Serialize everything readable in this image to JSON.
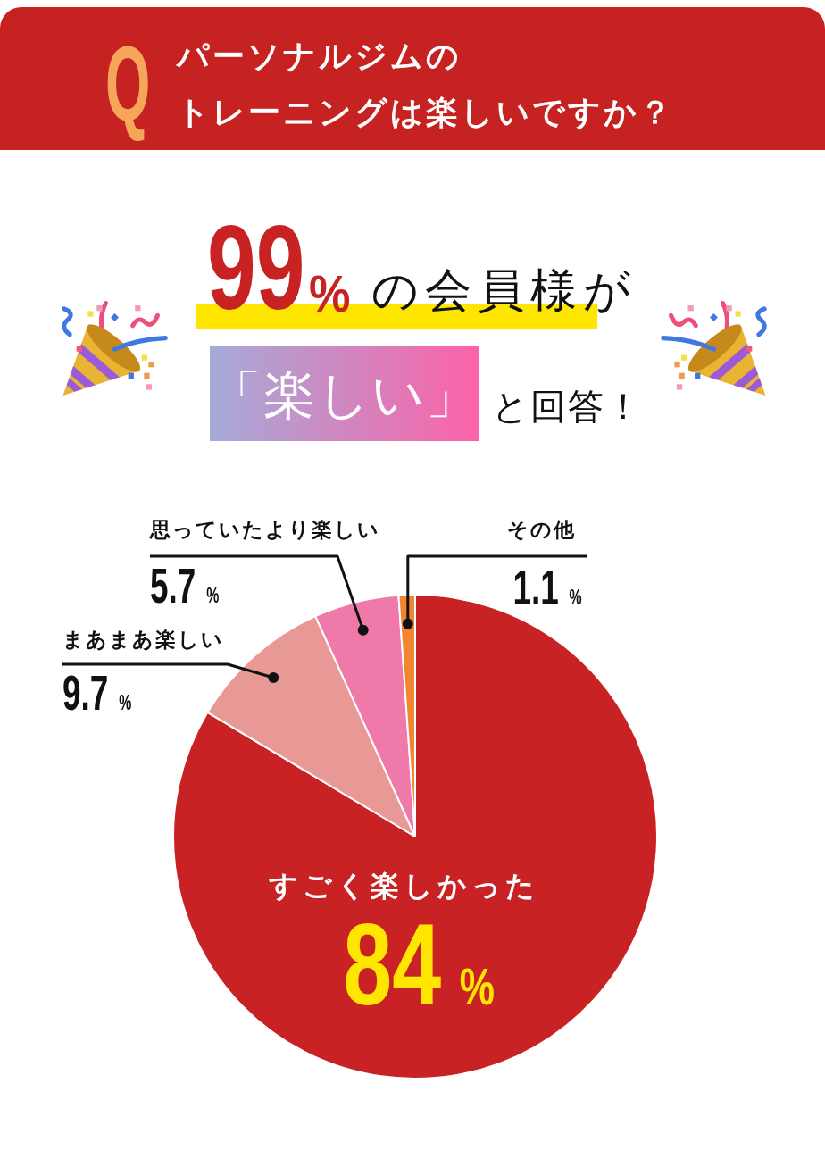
{
  "chart_data": {
    "type": "pie",
    "title": "パーソナルジムのトレーニングは楽しいですか？",
    "categories": [
      "すごく楽しかった",
      "まあまあ楽しい",
      "思っていたより楽しい",
      "その他"
    ],
    "values": [
      84,
      9.7,
      5.7,
      1.1
    ],
    "colors": [
      "#c82224",
      "#e99995",
      "#ef7aa9",
      "#f38530"
    ],
    "value_labels": [
      "84%",
      "9.7%",
      "5.7%",
      "1.1%"
    ],
    "annotations": [
      "Q",
      "99%",
      "の会員様が",
      "「楽しい」",
      "と回答！"
    ]
  }
}
